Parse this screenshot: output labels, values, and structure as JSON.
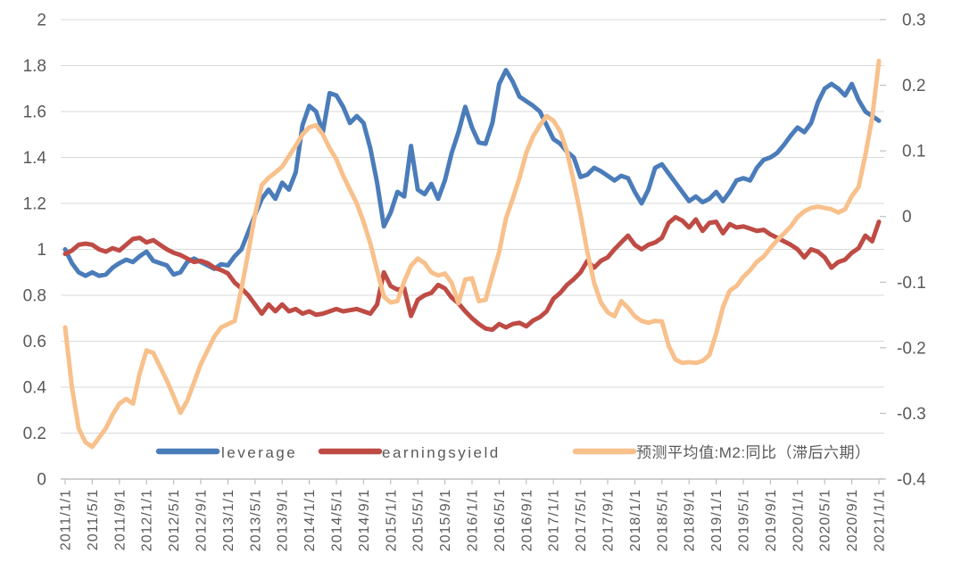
{
  "chart_data": {
    "type": "line",
    "title": "",
    "grid": "horizontal",
    "legend_position": "bottom-inside",
    "x": {
      "start": "2011/1/1",
      "end": "2021/1/1",
      "frequency": "monthly",
      "count": 121
    },
    "x_tick_labels": [
      "2011/1/1",
      "2011/5/1",
      "2011/9/1",
      "2012/1/1",
      "2012/5/1",
      "2012/9/1",
      "2013/1/1",
      "2013/5/1",
      "2013/9/1",
      "2014/1/1",
      "2014/5/1",
      "2014/9/1",
      "2015/1/1",
      "2015/5/1",
      "2015/9/1",
      "2016/1/1",
      "2016/5/1",
      "2016/9/1",
      "2017/1/1",
      "2017/5/1",
      "2017/9/1",
      "2018/1/1",
      "2018/5/1",
      "2018/9/1",
      "2019/1/1",
      "2019/5/1",
      "2019/9/1",
      "2020/1/1",
      "2020/5/1",
      "2020/9/1",
      "2021/1/1"
    ],
    "y_axis_left": {
      "min": 0,
      "max": 2,
      "ticks": [
        0,
        0.2,
        0.4,
        0.6,
        0.8,
        1,
        1.2,
        1.4,
        1.6,
        1.8,
        2
      ],
      "labels": [
        "0",
        "0.2",
        "0.4",
        "0.6",
        "0.8",
        "1",
        "1.2",
        "1.4",
        "1.6",
        "1.8",
        "2"
      ]
    },
    "y_axis_right": {
      "min": -0.4,
      "max": 0.3,
      "ticks": [
        -0.4,
        -0.3,
        -0.2,
        -0.1,
        0,
        0.1,
        0.2,
        0.3
      ],
      "labels": [
        "-0.4",
        "-0.3",
        "-0.2",
        "-0.1",
        "0",
        "0.1",
        "0.2",
        "0.3"
      ]
    },
    "series": [
      {
        "name": "leverage",
        "axis": "left",
        "color": "#4b7cba",
        "values": [
          1.0,
          0.94,
          0.9,
          0.885,
          0.9,
          0.885,
          0.89,
          0.92,
          0.94,
          0.955,
          0.945,
          0.97,
          0.99,
          0.95,
          0.94,
          0.93,
          0.89,
          0.9,
          0.945,
          0.96,
          0.945,
          0.93,
          0.915,
          0.935,
          0.93,
          0.97,
          1.0,
          1.075,
          1.15,
          1.22,
          1.26,
          1.22,
          1.29,
          1.26,
          1.335,
          1.54,
          1.625,
          1.6,
          1.51,
          1.68,
          1.67,
          1.62,
          1.55,
          1.58,
          1.55,
          1.44,
          1.29,
          1.1,
          1.16,
          1.25,
          1.23,
          1.45,
          1.26,
          1.24,
          1.285,
          1.22,
          1.3,
          1.42,
          1.51,
          1.62,
          1.53,
          1.465,
          1.46,
          1.55,
          1.72,
          1.78,
          1.73,
          1.665,
          1.645,
          1.625,
          1.6,
          1.54,
          1.48,
          1.46,
          1.425,
          1.4,
          1.315,
          1.325,
          1.355,
          1.34,
          1.32,
          1.3,
          1.32,
          1.31,
          1.25,
          1.2,
          1.26,
          1.355,
          1.37,
          1.33,
          1.29,
          1.25,
          1.21,
          1.23,
          1.205,
          1.22,
          1.25,
          1.21,
          1.25,
          1.3,
          1.31,
          1.3,
          1.355,
          1.39,
          1.4,
          1.42,
          1.455,
          1.495,
          1.53,
          1.51,
          1.55,
          1.64,
          1.7,
          1.72,
          1.7,
          1.67,
          1.72,
          1.65,
          1.6,
          1.58,
          1.56
        ]
      },
      {
        "name": "earningsyield",
        "axis": "left",
        "color": "#bf4b45",
        "values": [
          0.98,
          0.995,
          1.02,
          1.025,
          1.02,
          1.0,
          0.99,
          1.005,
          0.995,
          1.02,
          1.045,
          1.05,
          1.03,
          1.04,
          1.02,
          1.0,
          0.985,
          0.975,
          0.96,
          0.945,
          0.95,
          0.94,
          0.92,
          0.91,
          0.895,
          0.855,
          0.83,
          0.8,
          0.76,
          0.72,
          0.76,
          0.73,
          0.76,
          0.73,
          0.74,
          0.72,
          0.73,
          0.715,
          0.72,
          0.73,
          0.74,
          0.73,
          0.735,
          0.74,
          0.73,
          0.72,
          0.76,
          0.9,
          0.84,
          0.825,
          0.83,
          0.71,
          0.78,
          0.8,
          0.81,
          0.845,
          0.83,
          0.79,
          0.765,
          0.73,
          0.7,
          0.675,
          0.655,
          0.65,
          0.675,
          0.66,
          0.675,
          0.68,
          0.665,
          0.69,
          0.705,
          0.73,
          0.785,
          0.81,
          0.845,
          0.87,
          0.9,
          0.95,
          0.92,
          0.95,
          0.965,
          1.0,
          1.03,
          1.06,
          1.02,
          1.0,
          1.02,
          1.03,
          1.05,
          1.115,
          1.14,
          1.125,
          1.095,
          1.13,
          1.08,
          1.115,
          1.12,
          1.07,
          1.11,
          1.095,
          1.1,
          1.09,
          1.08,
          1.085,
          1.065,
          1.05,
          1.035,
          1.02,
          1.0,
          0.965,
          1.0,
          0.99,
          0.965,
          0.92,
          0.945,
          0.955,
          0.985,
          1.005,
          1.06,
          1.035,
          1.12
        ]
      },
      {
        "name": "预测平均值:M2:同比（滞后六期）",
        "axis": "right",
        "color": "#f8c08b",
        "values": [
          -0.169,
          -0.26,
          -0.323,
          -0.344,
          -0.351,
          -0.337,
          -0.323,
          -0.302,
          -0.285,
          -0.278,
          -0.285,
          -0.239,
          -0.204,
          -0.208,
          -0.229,
          -0.25,
          -0.274,
          -0.299,
          -0.281,
          -0.253,
          -0.225,
          -0.204,
          -0.183,
          -0.169,
          -0.164,
          -0.159,
          -0.11,
          -0.055,
          0.003,
          0.048,
          0.059,
          0.067,
          0.076,
          0.092,
          0.108,
          0.125,
          0.136,
          0.139,
          0.125,
          0.104,
          0.087,
          0.062,
          0.041,
          0.02,
          -0.008,
          -0.041,
          -0.082,
          -0.122,
          -0.131,
          -0.129,
          -0.099,
          -0.075,
          -0.064,
          -0.071,
          -0.085,
          -0.09,
          -0.087,
          -0.101,
          -0.132,
          -0.096,
          -0.094,
          -0.129,
          -0.127,
          -0.09,
          -0.054,
          -0.003,
          0.027,
          0.059,
          0.097,
          0.122,
          0.139,
          0.153,
          0.146,
          0.13,
          0.099,
          0.053,
          0.003,
          -0.054,
          -0.101,
          -0.131,
          -0.146,
          -0.152,
          -0.129,
          -0.139,
          -0.152,
          -0.159,
          -0.162,
          -0.159,
          -0.16,
          -0.197,
          -0.218,
          -0.223,
          -0.222,
          -0.223,
          -0.22,
          -0.211,
          -0.178,
          -0.138,
          -0.113,
          -0.106,
          -0.092,
          -0.082,
          -0.069,
          -0.061,
          -0.048,
          -0.036,
          -0.026,
          -0.015,
          -0.001,
          0.008,
          0.013,
          0.015,
          0.013,
          0.011,
          0.006,
          0.011,
          0.031,
          0.045,
          0.094,
          0.15,
          0.237
        ]
      }
    ],
    "colors": {
      "gridline": "#d9d9d9",
      "axis_line": "#bfbfbf",
      "tick_text": "#595959",
      "legend_text": "#595959"
    }
  }
}
